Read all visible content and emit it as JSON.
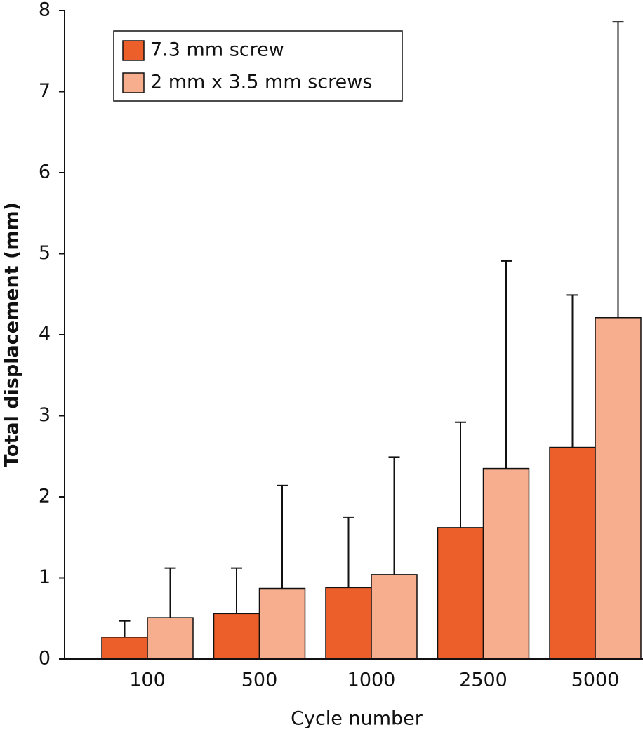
{
  "chart_data": {
    "type": "bar",
    "x_label": "Cycle number",
    "y_label": "Total displacement (mm)",
    "categories": [
      "100",
      "500",
      "1000",
      "2500",
      "5000"
    ],
    "series": [
      {
        "name": "7.3 mm screw",
        "color": "#ec5f2b",
        "values": [
          0.27,
          0.56,
          0.88,
          1.62,
          2.61
        ],
        "errors": [
          0.2,
          0.56,
          0.87,
          1.3,
          1.88
        ]
      },
      {
        "name": "2 mm x 3.5 mm screws",
        "color": "#f7ae8f",
        "values": [
          0.51,
          0.87,
          1.04,
          2.35,
          4.21
        ],
        "errors": [
          0.61,
          1.27,
          1.45,
          2.56,
          3.65
        ]
      }
    ],
    "ylim": [
      0,
      8
    ],
    "yticks": [
      0,
      1,
      2,
      3,
      4,
      5,
      6,
      7,
      8
    ],
    "legend": "upper left",
    "error_bars": "upper"
  }
}
